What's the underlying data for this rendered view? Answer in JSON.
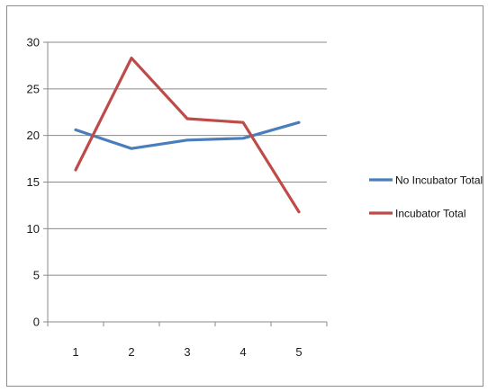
{
  "chart_data": {
    "type": "line",
    "title": "",
    "xlabel": "",
    "ylabel": "",
    "x": [
      1,
      2,
      3,
      4,
      5
    ],
    "ylim": [
      0,
      30
    ],
    "yticks": [
      0,
      5,
      10,
      15,
      20,
      25,
      30
    ],
    "grid": true,
    "legend_position": "right",
    "series": [
      {
        "name": "No Incubator Total",
        "color": "#4a7ebb",
        "values": [
          20.6,
          18.6,
          19.5,
          19.7,
          21.4
        ]
      },
      {
        "name": "Incubator Total",
        "color": "#be4b48",
        "values": [
          16.3,
          28.3,
          21.8,
          21.4,
          11.8
        ]
      }
    ]
  }
}
